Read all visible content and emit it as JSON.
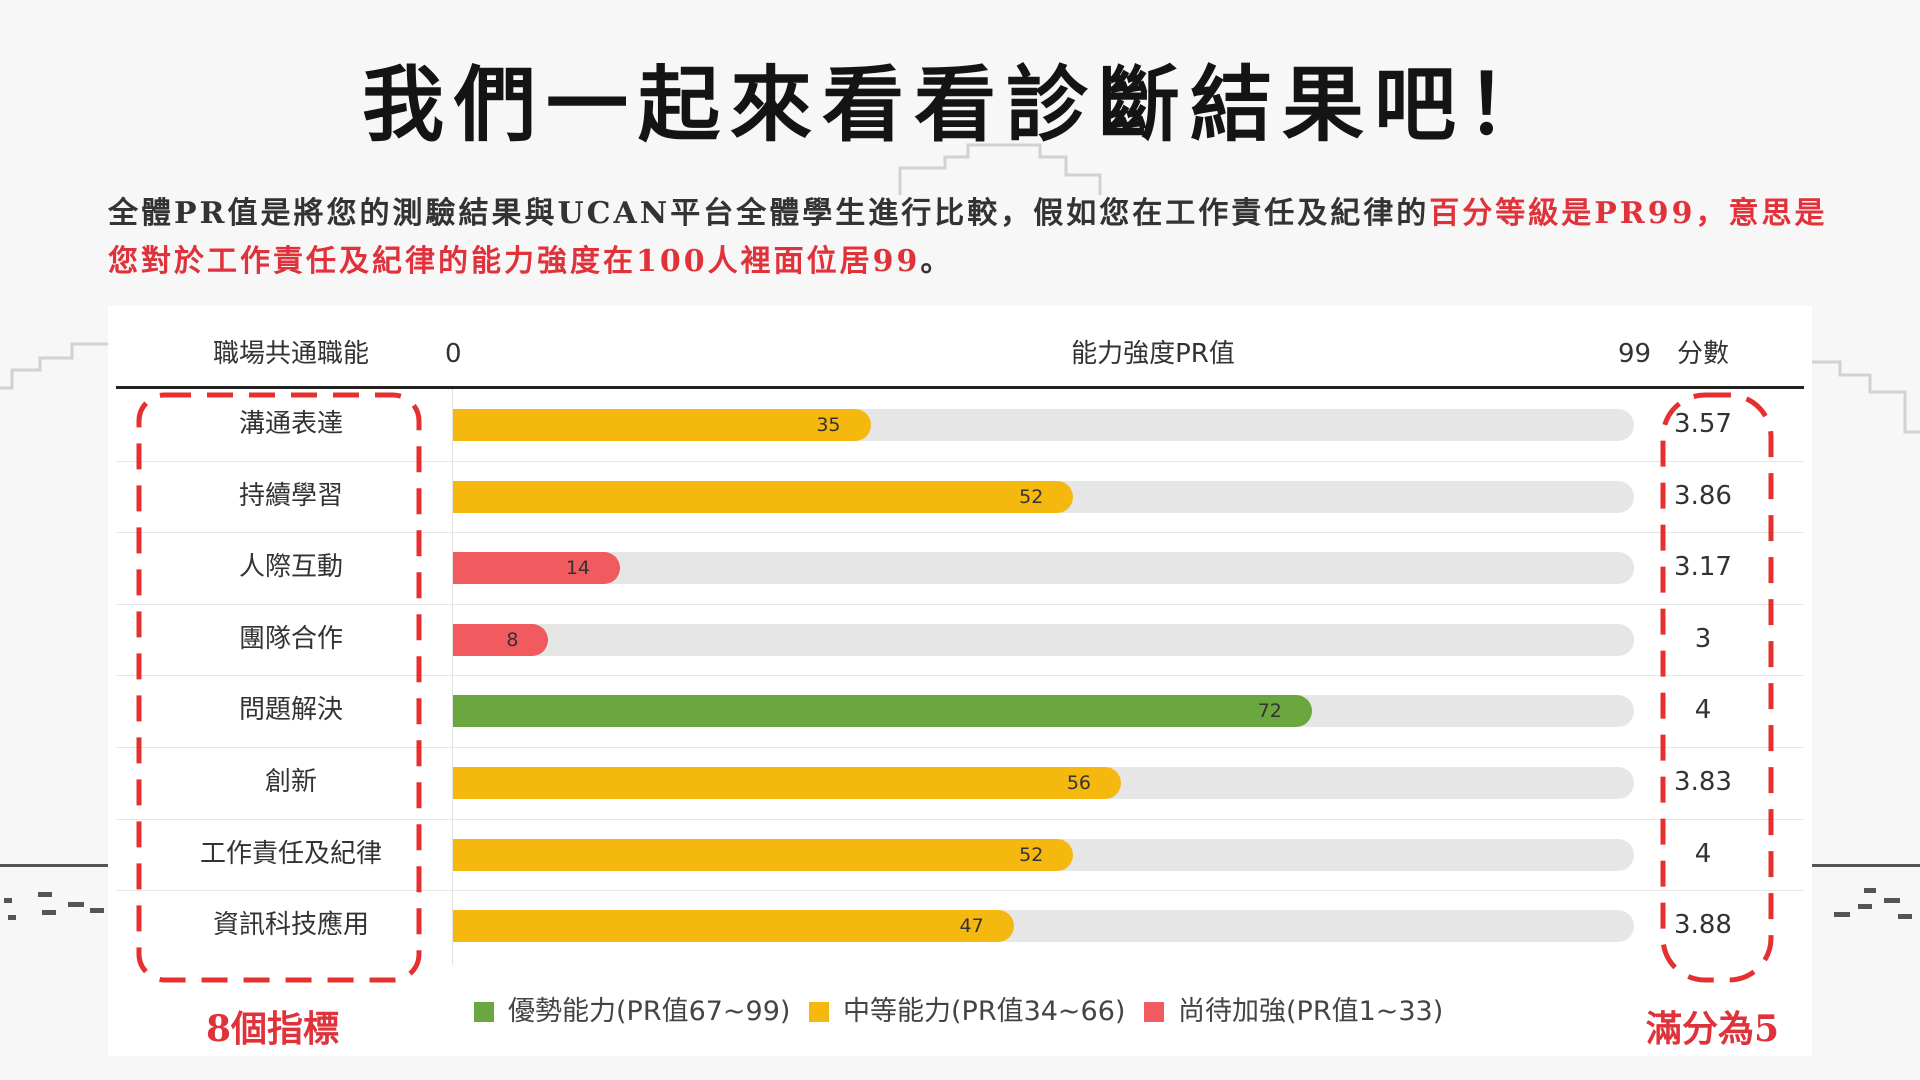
{
  "title": "我們一起來看看診斷結果吧！",
  "intro": {
    "normal": "全體PR值是將您的測驗結果與UCAN平台全體學生進行比較，假如您在工作責任及紀律的",
    "highlight": "百分等級是PR99，意思是您對於工作責任及紀律的能力強度在100人裡面位居99",
    "end": "。"
  },
  "chart_data": {
    "type": "bar",
    "orientation": "horizontal",
    "headers": {
      "category": "職場共通職能",
      "axis_min_label": "0",
      "axis_title": "能力強度PR值",
      "axis_max_label": "99",
      "score": "分數"
    },
    "xlim": [
      0,
      99
    ],
    "rows": [
      {
        "label": "溝通表達",
        "pr": 35,
        "score": "3.57",
        "level": "mid"
      },
      {
        "label": "持續學習",
        "pr": 52,
        "score": "3.86",
        "level": "mid"
      },
      {
        "label": "人際互動",
        "pr": 14,
        "score": "3.17",
        "level": "low"
      },
      {
        "label": "團隊合作",
        "pr": 8,
        "score": "3",
        "level": "low"
      },
      {
        "label": "問題解決",
        "pr": 72,
        "score": "4",
        "level": "high"
      },
      {
        "label": "創新",
        "pr": 56,
        "score": "3.83",
        "level": "mid"
      },
      {
        "label": "工作責任及紀律",
        "pr": 52,
        "score": "4",
        "level": "mid"
      },
      {
        "label": "資訊科技應用",
        "pr": 47,
        "score": "3.88",
        "level": "mid"
      }
    ],
    "legend": [
      {
        "label": "優勢能力(PR值67~99)",
        "color": "#6ca63f"
      },
      {
        "label": "中等能力(PR值34~66)",
        "color": "#f5b80f"
      },
      {
        "label": "尚待加強(PR值1~33)",
        "color": "#f15a5e"
      }
    ],
    "colors": {
      "high": "#6ca63f",
      "mid": "#f5b80f",
      "low": "#f15a5e"
    },
    "annotations": {
      "left": "8個指標",
      "right": "滿分為5"
    }
  }
}
